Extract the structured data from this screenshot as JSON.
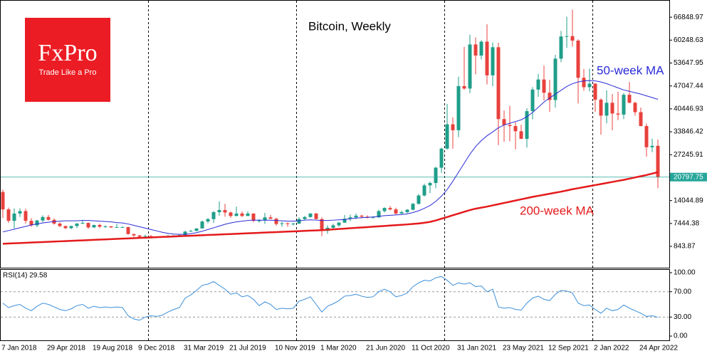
{
  "brand": {
    "name": "FxPro",
    "tagline": "Trade Like a Pro"
  },
  "chart_data": [
    {
      "type": "candlestick",
      "title": "Bitcoin, Weekly",
      "categories": [
        "7 Jan 2018",
        null,
        null,
        null,
        null,
        null,
        null,
        null,
        "29 Apr 2018",
        null,
        null,
        null,
        null,
        null,
        null,
        null,
        "19 Aug 2018",
        null,
        null,
        null,
        null,
        null,
        null,
        null,
        "9 Dec 2018",
        null,
        null,
        null,
        null,
        null,
        null,
        null,
        "31 Mar 2019",
        null,
        null,
        null,
        null,
        null,
        null,
        null,
        "21 Jul 2019",
        null,
        null,
        null,
        null,
        null,
        null,
        null,
        "10 Nov 2019",
        null,
        null,
        null,
        null,
        null,
        null,
        null,
        "1 Mar 2020",
        null,
        null,
        null,
        null,
        null,
        null,
        null,
        "21 Jun 2020",
        null,
        null,
        null,
        null,
        null,
        null,
        null,
        "11 Oct 2020",
        null,
        null,
        null,
        null,
        null,
        null,
        null,
        "31 Jan 2021",
        null,
        null,
        null,
        null,
        null,
        null,
        null,
        "23 May 2021",
        null,
        null,
        null,
        null,
        null,
        null,
        null,
        "12 Sep 2021",
        null,
        null,
        null,
        null,
        null,
        null,
        null,
        "2 Jan 2022",
        null,
        null,
        null,
        null,
        null,
        null,
        null,
        "24 Apr 2022",
        null,
        null,
        null
      ],
      "open": [
        16500,
        11500,
        8200,
        10300,
        11000,
        8200,
        6900,
        8300,
        9300,
        8500,
        7400,
        6700,
        6100,
        6700,
        7400,
        7600,
        6300,
        7000,
        6500,
        6600,
        6300,
        6400,
        6400,
        4400,
        4000,
        3600,
        3800,
        3600,
        3500,
        3600,
        3800,
        4000,
        4100,
        5100,
        5300,
        6000,
        8000,
        8700,
        10700,
        11300,
        10600,
        9600,
        10300,
        9600,
        10300,
        8200,
        8300,
        9200,
        8800,
        7300,
        7500,
        7400,
        7400,
        8700,
        9300,
        10300,
        8700,
        5300,
        6200,
        6900,
        7700,
        8800,
        9200,
        9700,
        9400,
        9100,
        9200,
        11000,
        11900,
        11500,
        10300,
        10700,
        11400,
        13100,
        15500,
        18400,
        19100,
        23500,
        29000,
        36000,
        34300,
        47000,
        46300,
        59000,
        55800,
        59800,
        50100,
        58200,
        37500,
        35800,
        35500,
        34000,
        31800,
        39800,
        46000,
        48900,
        45100,
        43000,
        54900,
        61300,
        61400,
        60100,
        49400,
        46700,
        47700,
        43100,
        38500,
        42200,
        39100,
        38800,
        44500,
        42200,
        39500,
        35500,
        29400,
        29800
      ],
      "high": [
        17200,
        12000,
        11800,
        11800,
        11700,
        9000,
        8500,
        9800,
        9900,
        8900,
        7800,
        6800,
        6800,
        7600,
        8500,
        7700,
        7100,
        7400,
        6900,
        6700,
        7400,
        6600,
        6500,
        4500,
        4100,
        4200,
        4100,
        3700,
        3700,
        4200,
        4000,
        4200,
        5300,
        5600,
        6100,
        8300,
        9000,
        11000,
        13800,
        13100,
        10900,
        12300,
        10900,
        10900,
        10400,
        8700,
        10500,
        9900,
        9100,
        7900,
        7700,
        7600,
        9200,
        9600,
        10400,
        10500,
        9200,
        6900,
        7400,
        7800,
        9900,
        10000,
        10300,
        9900,
        9800,
        9500,
        11400,
        12100,
        12500,
        12000,
        11100,
        11600,
        13400,
        15900,
        18900,
        19500,
        23800,
        29300,
        41900,
        38000,
        49700,
        58300,
        61800,
        61000,
        60200,
        64800,
        59600,
        59500,
        40000,
        41300,
        36600,
        35900,
        40600,
        46700,
        50500,
        52900,
        48800,
        56000,
        62900,
        67000,
        69000,
        60500,
        51900,
        52000,
        47900,
        43500,
        45800,
        44700,
        45400,
        45000,
        48200,
        42500,
        40800,
        36200,
        31900,
        31600
      ],
      "low": [
        9000,
        7600,
        6000,
        9300,
        7400,
        6500,
        6400,
        7800,
        8300,
        7100,
        6400,
        5800,
        5800,
        6100,
        7300,
        5900,
        6200,
        6100,
        6200,
        6200,
        6200,
        6200,
        4200,
        3600,
        3200,
        3500,
        3500,
        3400,
        3400,
        3600,
        3700,
        3900,
        4100,
        5000,
        5200,
        6000,
        7500,
        7600,
        9700,
        9400,
        9100,
        9500,
        9300,
        9600,
        7800,
        7700,
        7300,
        8700,
        6800,
        6500,
        6500,
        6900,
        7300,
        8300,
        9100,
        8600,
        3800,
        4500,
        5900,
        6500,
        7600,
        8100,
        8700,
        8900,
        8900,
        9000,
        9100,
        10600,
        11200,
        9900,
        10200,
        10400,
        11200,
        12900,
        15200,
        16200,
        17600,
        22000,
        28700,
        29000,
        32300,
        46000,
        45000,
        50400,
        54700,
        47500,
        47000,
        30000,
        31000,
        31100,
        28800,
        31800,
        29300,
        37400,
        43900,
        42800,
        39600,
        40800,
        53900,
        58000,
        58400,
        42000,
        45700,
        45500,
        39600,
        33000,
        36300,
        34300,
        37200,
        37500,
        42100,
        38500,
        35400,
        26700,
        28000,
        17600
      ],
      "close": [
        11500,
        8200,
        10300,
        11000,
        8200,
        6900,
        8300,
        9300,
        8500,
        7400,
        6700,
        6100,
        6700,
        7400,
        7600,
        6300,
        7000,
        6500,
        6600,
        6300,
        6400,
        6400,
        4400,
        4000,
        3600,
        3800,
        3600,
        3500,
        3600,
        3800,
        4000,
        4100,
        5100,
        5300,
        6000,
        8000,
        8700,
        10700,
        11300,
        10600,
        9600,
        10300,
        9600,
        10300,
        8200,
        8300,
        9200,
        8800,
        7300,
        7500,
        7400,
        7400,
        8700,
        9300,
        10300,
        8700,
        5300,
        6200,
        6900,
        7700,
        8800,
        9200,
        9700,
        9400,
        9100,
        9200,
        11000,
        11900,
        11500,
        10300,
        10700,
        11400,
        13100,
        15500,
        18400,
        19100,
        23500,
        29000,
        36000,
        34300,
        47000,
        46300,
        59000,
        55800,
        59800,
        50100,
        58200,
        37500,
        35800,
        35500,
        34000,
        31800,
        39800,
        46000,
        48900,
        45100,
        43000,
        54900,
        61300,
        61400,
        60100,
        49400,
        46700,
        47700,
        43100,
        38500,
        42200,
        39100,
        38800,
        44500,
        42200,
        39500,
        35500,
        29400,
        29800,
        20797.75
      ],
      "up_color": "#1f9e89",
      "down_color": "#e8413c",
      "series": [
        {
          "name": "50-week MA",
          "color": "#2b2bd6",
          "values": [
            5000,
            5400,
            5800,
            6200,
            6600,
            7000,
            7300,
            7600,
            7800,
            8000,
            8100,
            8200,
            8200,
            8200,
            8300,
            8300,
            8200,
            8100,
            8000,
            7900,
            7700,
            7600,
            7300,
            6900,
            6500,
            6100,
            5700,
            5300,
            4900,
            4600,
            4400,
            4300,
            4300,
            4500,
            4800,
            5200,
            5700,
            6200,
            6700,
            7200,
            7600,
            7900,
            8100,
            8300,
            8400,
            8400,
            8400,
            8400,
            8300,
            8200,
            8100,
            8100,
            8200,
            8400,
            8500,
            8400,
            8300,
            8300,
            8400,
            8500,
            8600,
            8800,
            9000,
            9100,
            9200,
            9300,
            9500,
            9700,
            9800,
            9900,
            10000,
            10200,
            10600,
            11100,
            11800,
            12600,
            13800,
            15300,
            17200,
            19600,
            22200,
            24800,
            27400,
            29600,
            31300,
            32700,
            33800,
            35000,
            35800,
            36300,
            36800,
            37300,
            38200,
            39400,
            40900,
            42400,
            43600,
            44700,
            45800,
            46900,
            47700,
            48200,
            48500,
            48600,
            48500,
            48200,
            47700,
            47100,
            46500,
            45900,
            45500,
            45100,
            44700,
            44200,
            43700,
            43200
          ]
        },
        {
          "name": "200-week MA",
          "color": "#e41a1c",
          "values": [
            1600,
            1670,
            1740,
            1810,
            1880,
            1950,
            2020,
            2090,
            2160,
            2230,
            2300,
            2370,
            2440,
            2510,
            2580,
            2650,
            2720,
            2790,
            2860,
            2930,
            3000,
            3070,
            3140,
            3210,
            3280,
            3350,
            3420,
            3490,
            3560,
            3630,
            3700,
            3770,
            3840,
            3910,
            3980,
            4050,
            4120,
            4190,
            4260,
            4330,
            4400,
            4470,
            4540,
            4610,
            4680,
            4750,
            4820,
            4890,
            4960,
            5030,
            5100,
            5170,
            5240,
            5310,
            5380,
            5450,
            5520,
            5630,
            5740,
            5850,
            5960,
            6070,
            6180,
            6290,
            6400,
            6510,
            6620,
            6730,
            6840,
            6950,
            7060,
            7170,
            7300,
            7450,
            7650,
            7900,
            8300,
            8800,
            9300,
            9800,
            10300,
            10800,
            11300,
            11700,
            12000,
            12300,
            12650,
            13000,
            13350,
            13700,
            14050,
            14400,
            14750,
            15100,
            15400,
            15700,
            16000,
            16300,
            16600,
            16950,
            17300,
            17600,
            17900,
            18200,
            18500,
            18800,
            19100,
            19400,
            19700,
            20000,
            20350,
            20700,
            21050,
            21400,
            21800,
            22200
          ]
        }
      ],
      "last_price": 20797.75,
      "last_price_color": "#26a69a",
      "ylim": [
        -5300,
        71800
      ],
      "yticks": [
        66848.97,
        60248.63,
        53647.95,
        47047.44,
        40446.93,
        33846.42,
        27245.91,
        14044.89,
        7444.38,
        843.87
      ]
    },
    {
      "type": "line",
      "title": "RSI(14) 29.58",
      "series": [
        {
          "name": "RSI(14)",
          "color": "#3b8fd9",
          "values": [
            52,
            45,
            48,
            50,
            44,
            40,
            47,
            52,
            50,
            46,
            42,
            40,
            43,
            48,
            50,
            44,
            47,
            45,
            46,
            45,
            46,
            45,
            32,
            27,
            25,
            30,
            32,
            31,
            33,
            38,
            42,
            45,
            60,
            65,
            72,
            80,
            82,
            86,
            80,
            74,
            66,
            68,
            62,
            64,
            58,
            48,
            54,
            50,
            42,
            44,
            43,
            44,
            55,
            58,
            62,
            50,
            38,
            47,
            51,
            56,
            63,
            64,
            66,
            63,
            61,
            62,
            70,
            74,
            70,
            62,
            64,
            68,
            78,
            84,
            88,
            87,
            92,
            94,
            88,
            80,
            84,
            82,
            84,
            78,
            79,
            70,
            74,
            46,
            44,
            45,
            42,
            41,
            52,
            60,
            63,
            58,
            56,
            66,
            72,
            71,
            68,
            52,
            48,
            49,
            42,
            36,
            44,
            40,
            42,
            49,
            44,
            40,
            36,
            31,
            32,
            29.58
          ]
        }
      ],
      "ylim": [
        -6.7,
        105.6
      ],
      "yticks": [
        {
          "value": 100,
          "label": "100.00"
        },
        {
          "value": 70,
          "label": "70.00"
        },
        {
          "value": 30,
          "label": "30.00"
        },
        {
          "value": 0,
          "label": "0.00"
        }
      ]
    }
  ]
}
